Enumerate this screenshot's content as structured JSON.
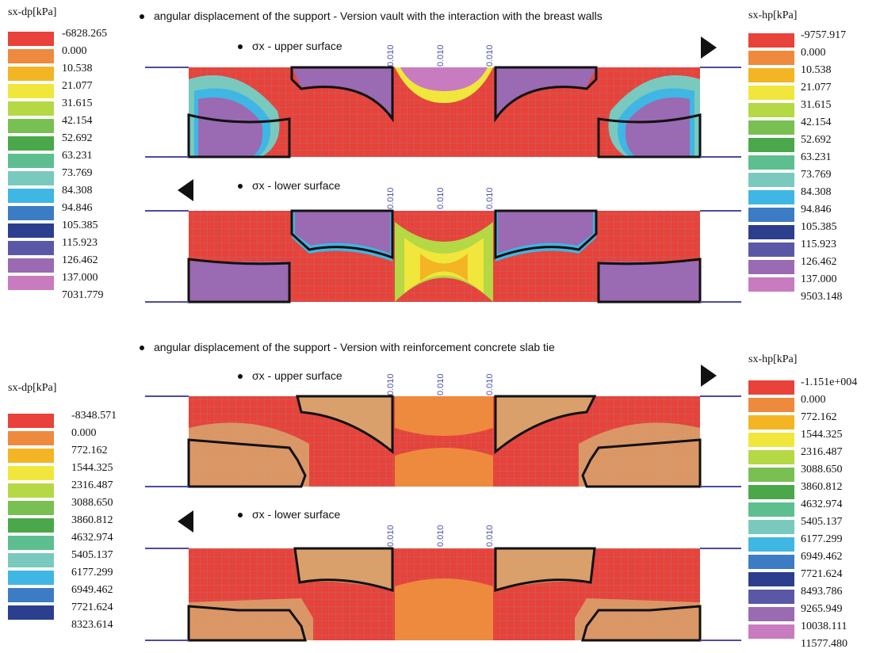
{
  "colors": {
    "red": "#e8423a",
    "orange": "#ee8a3d",
    "amber": "#f3b524",
    "yellow": "#f0e63c",
    "lime": "#b5d845",
    "green": "#79c053",
    "green2": "#4aa84a",
    "teal": "#5dbf8f",
    "aqua": "#79c9bf",
    "cyan": "#3fb6e3",
    "blue": "#3c7cc4",
    "navy": "#2b3f8e",
    "indigo": "#5a58a6",
    "purple": "#9a6ab2",
    "magenta": "#c97bc0",
    "tan": "#d9a06b",
    "grid": "#8e8e8e",
    "frame": "#4d4b9e"
  },
  "top": {
    "heading": "angular displacement of the support - Version vault with the interaction with the breast walls",
    "upper_label": "σx - upper surface",
    "lower_label": "σx - lower surface",
    "vertical_labels": [
      "0.010",
      "0.010",
      "0.010"
    ],
    "left_legend": {
      "title": "sx-dp[kPa]",
      "values": [
        "-6828.265",
        "0.000",
        "10.538",
        "21.077",
        "31.615",
        "42.154",
        "52.692",
        "63.231",
        "73.769",
        "84.308",
        "94.846",
        "105.385",
        "115.923",
        "126.462",
        "137.000",
        "7031.779"
      ]
    },
    "right_legend": {
      "title": "sx-hp[kPa]",
      "values": [
        "-9757.917",
        "0.000",
        "10.538",
        "21.077",
        "31.615",
        "42.154",
        "52.692",
        "63.231",
        "73.769",
        "84.308",
        "94.846",
        "105.385",
        "115.923",
        "126.462",
        "137.000",
        "9503.148"
      ]
    }
  },
  "bottom": {
    "heading": "angular displacement of the support - Version with reinforcement concrete slab tie",
    "upper_label": "σx - upper surface",
    "lower_label": "σx - lower surface",
    "vertical_labels": [
      "0.010",
      "0.010",
      "0.010"
    ],
    "left_legend": {
      "title": "sx-dp[kPa]",
      "values": [
        "-8348.571",
        "0.000",
        "772.162",
        "1544.325",
        "2316.487",
        "3088.650",
        "3860.812",
        "4632.974",
        "5405.137",
        "6177.299",
        "6949.462",
        "7721.624",
        "8323.614"
      ]
    },
    "right_legend": {
      "title": "sx-hp[kPa]",
      "values": [
        "-1.151e+004",
        "0.000",
        "772.162",
        "1544.325",
        "2316.487",
        "3088.650",
        "3860.812",
        "4632.974",
        "5405.137",
        "6177.299",
        "6949.462",
        "7721.624",
        "8493.786",
        "9265.949",
        "10038.111",
        "11577.480"
      ]
    }
  },
  "palette16": [
    "#e8423a",
    "#ee8a3d",
    "#f3b524",
    "#f0e63c",
    "#b5d845",
    "#79c053",
    "#4aa84a",
    "#5dbf8f",
    "#79c9bf",
    "#3fb6e3",
    "#3c7cc4",
    "#2b3f8e",
    "#5a58a6",
    "#9a6ab2",
    "#c97bc0",
    "#c97bc0"
  ]
}
